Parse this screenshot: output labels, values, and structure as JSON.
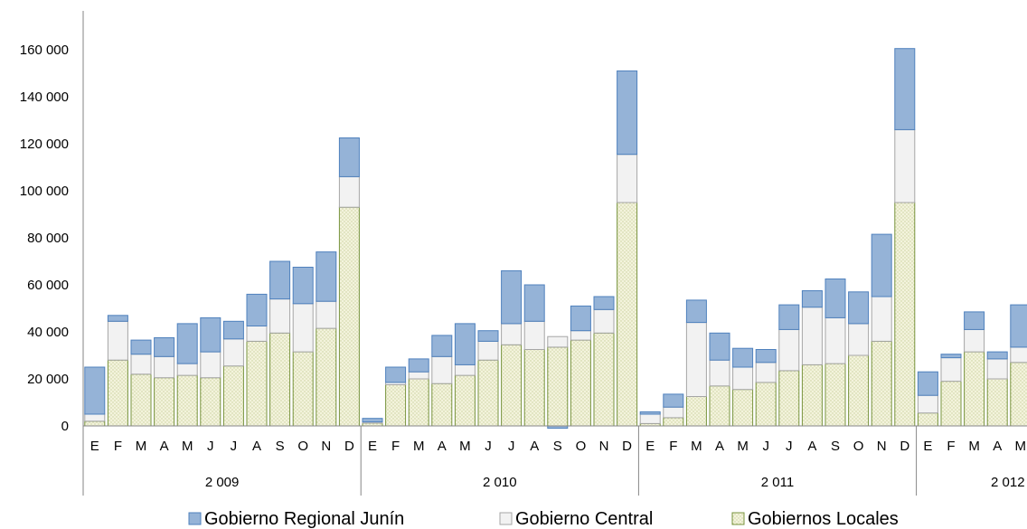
{
  "chart_data": {
    "type": "bar",
    "stacked": true,
    "groups": [
      {
        "label": "2 009",
        "months": [
          "E",
          "F",
          "M",
          "A",
          "M",
          "J",
          "J",
          "A",
          "S",
          "O",
          "N",
          "D"
        ]
      },
      {
        "label": "2 010",
        "months": [
          "E",
          "F",
          "M",
          "A",
          "M",
          "J",
          "J",
          "A",
          "S",
          "O",
          "N",
          "D"
        ]
      },
      {
        "label": "2 011",
        "months": [
          "E",
          "F",
          "M",
          "A",
          "M",
          "J",
          "J",
          "A",
          "S",
          "O",
          "N",
          "D"
        ]
      },
      {
        "label": "2 012",
        "months": [
          "E",
          "F",
          "M",
          "A",
          "M"
        ]
      }
    ],
    "series": [
      {
        "name": "Gobiernos Locales",
        "color": "#f2f2d8",
        "stroke": "#77933c",
        "values": [
          2000,
          28000,
          22000,
          20500,
          21500,
          20500,
          25500,
          36000,
          39500,
          31500,
          41500,
          93000,
          1200,
          17500,
          20000,
          18000,
          21500,
          28000,
          34500,
          32500,
          33500,
          36500,
          39500,
          95000,
          1000,
          3500,
          12500,
          17000,
          15500,
          18500,
          23500,
          26000,
          26500,
          30000,
          36000,
          95000,
          5500,
          19000,
          31500,
          20000,
          27000
        ]
      },
      {
        "name": "Gobierno Central",
        "color": "#f2f2f2",
        "stroke": "#a6a6a6",
        "values": [
          3000,
          16500,
          8500,
          9000,
          5000,
          11000,
          11500,
          6500,
          14500,
          20500,
          11500,
          13000,
          500,
          1000,
          3000,
          11500,
          4500,
          8000,
          9000,
          12000,
          4500,
          4000,
          10000,
          20500,
          4000,
          4500,
          31500,
          11000,
          9500,
          8500,
          17500,
          24500,
          19500,
          13500,
          19000,
          31000,
          7500,
          10000,
          9500,
          8500,
          6500
        ]
      },
      {
        "name": "Gobierno Regional Junín",
        "color": "#95b3d7",
        "stroke": "#4f81bd",
        "values": [
          20000,
          2500,
          6000,
          8000,
          17000,
          14500,
          7500,
          13500,
          16000,
          15500,
          21000,
          16500,
          1500,
          6500,
          5500,
          9000,
          17500,
          4500,
          22500,
          15500,
          -1000,
          10500,
          5500,
          35500,
          1000,
          5500,
          9500,
          11500,
          8000,
          5500,
          10500,
          7000,
          16500,
          13500,
          26500,
          34500,
          10000,
          1500,
          7500,
          3000,
          18000
        ]
      }
    ],
    "ylim": [
      0,
      170000
    ],
    "yticks": [
      0,
      20000,
      40000,
      60000,
      80000,
      100000,
      120000,
      140000,
      160000
    ],
    "ytick_labels": [
      "0",
      "20 000",
      "40 000",
      "60 000",
      "80 000",
      "100 000",
      "120 000",
      "140 000",
      "160 000"
    ],
    "legend": {
      "position": "bottom",
      "order": [
        "Gobierno Regional Junín",
        "Gobierno Central",
        "Gobiernos Locales"
      ]
    }
  }
}
